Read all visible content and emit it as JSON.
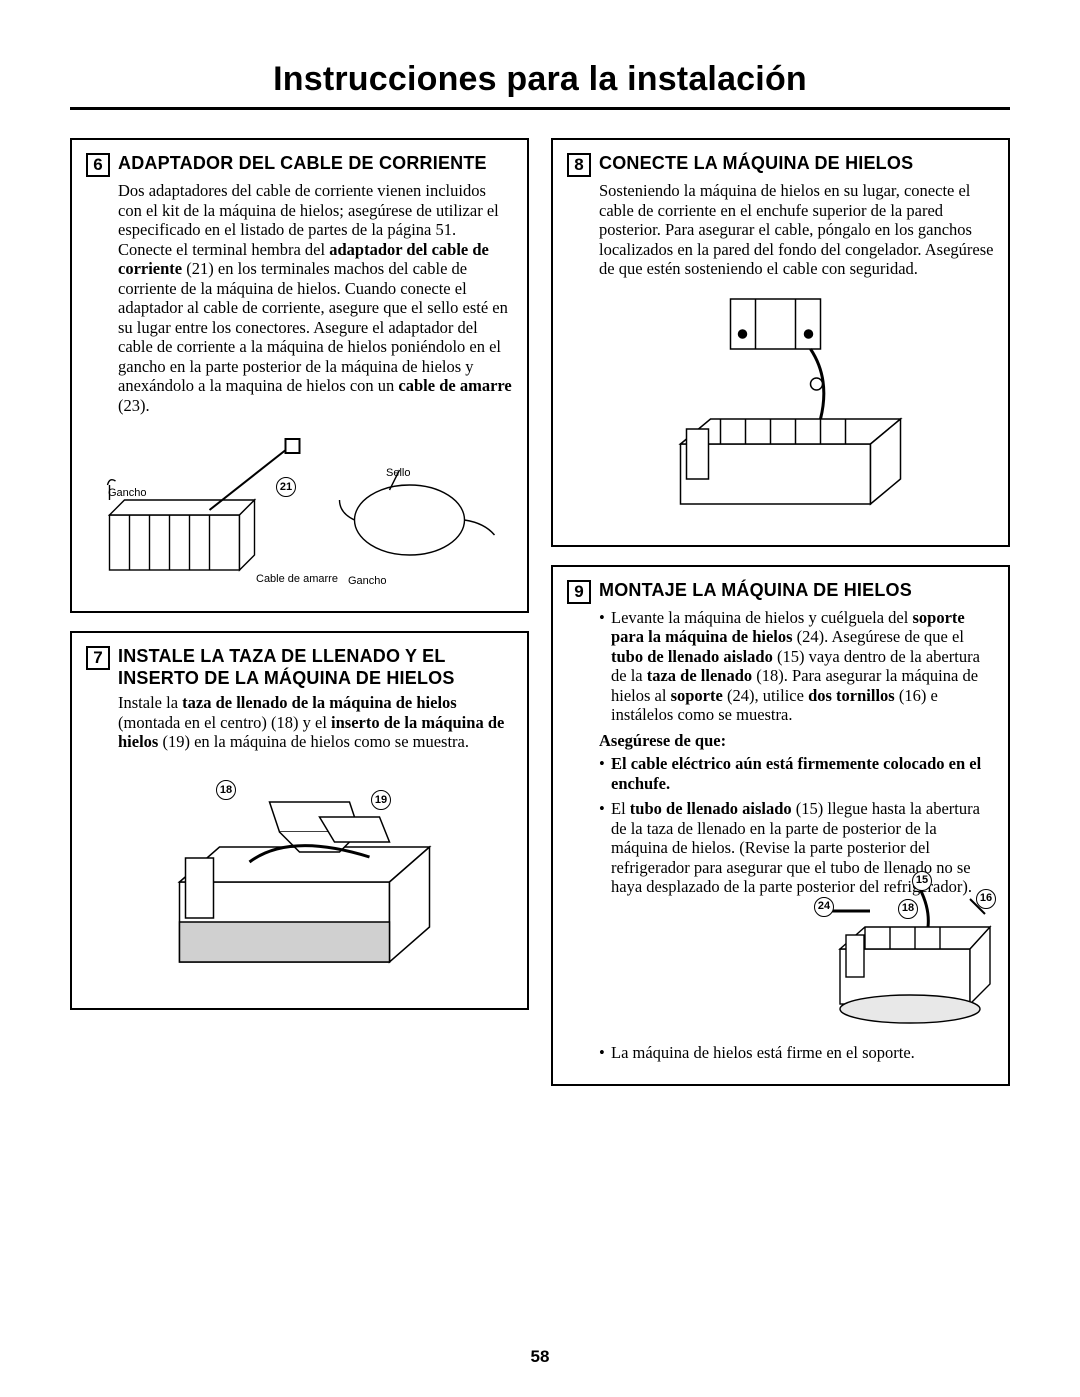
{
  "page": {
    "title": "Instrucciones para la instalación",
    "number": "58"
  },
  "steps": {
    "s6": {
      "num": "6",
      "title": "ADAPTADOR DEL CABLE DE CORRIENTE",
      "body_html": "Dos adaptadores del cable de corriente vienen incluidos con el kit de la máquina de hielos; asegúrese de utilizar el especificado en el listado de partes de la página 51. Conecte el terminal hembra del <b>adaptador del cable de corriente</b> (21) en los terminales machos del cable de corriente de la máquina de hielos. Cuando conecte el adaptador al cable de corriente, asegure que el sello esté en su lugar entre los conectores. Asegure el adaptador del cable de corriente a la máquina de hielos poniéndolo en el gancho en la parte posterior de la máquina de hielos y anexándolo a la maquina de hielos con un <b>cable de amarre</b> (23).",
      "labels": {
        "gancho1": "Gancho",
        "sello": "Sello",
        "cable_amarre": "Cable de amarre",
        "gancho2": "Gancho",
        "n21": "21"
      }
    },
    "s7": {
      "num": "7",
      "title": "INSTALE LA TAZA DE LLENADO Y EL INSERTO DE LA MÁQUINA DE HIELOS",
      "body_html": "Instale la <b>taza de llenado de la máquina de hielos</b> (montada en el centro) (18) y el <b>inserto de la máquina de hielos</b> (19) en la máquina de hielos como se muestra.",
      "labels": {
        "n18": "18",
        "n19": "19"
      }
    },
    "s8": {
      "num": "8",
      "title": "CONECTE LA MÁQUINA DE HIELOS",
      "body_html": "Sosteniendo la máquina de hielos en su lugar, conecte el cable de corriente en el enchufe superior de la pared posterior. Para asegurar el cable, póngalo en los ganchos localizados en la pared del fondo del congelador. Asegúrese de que estén sosteniendo el cable con seguridad."
    },
    "s9": {
      "num": "9",
      "title": "MONTAJE LA MÁQUINA DE HIELOS",
      "b1_html": "Levante la máquina de hielos y cuélguela del <b>soporte para la máquina de hielos</b> (24). Asegúrese de que el <b>tubo de llenado aislado</b> (15) vaya dentro de la abertura de la <b>taza de llenado</b> (18). Para asegurar la máquina de hielos al <b>soporte</b> (24), utilice <b>dos tornillos</b> (16) e instálelos como se muestra.",
      "asegurese": "Asegúrese de que:",
      "b2_html": "<b>El cable eléctrico aún está firmemente colocado en el enchufe.</b>",
      "b3_html": "El <b>tubo de llenado aislado</b> (15) llegue hasta la abertura de la taza de llenado en la parte de posterior de la máquina de hielos. (Revise la parte posterior del refrigerador para asegurar que el tubo de llenado no se haya desplazado de la parte posterior del refrigerador).",
      "b4": "La máquina de hielos está firme en el soporte.",
      "labels": {
        "n24": "24",
        "n15": "15",
        "n18": "18",
        "n16": "16"
      }
    }
  }
}
